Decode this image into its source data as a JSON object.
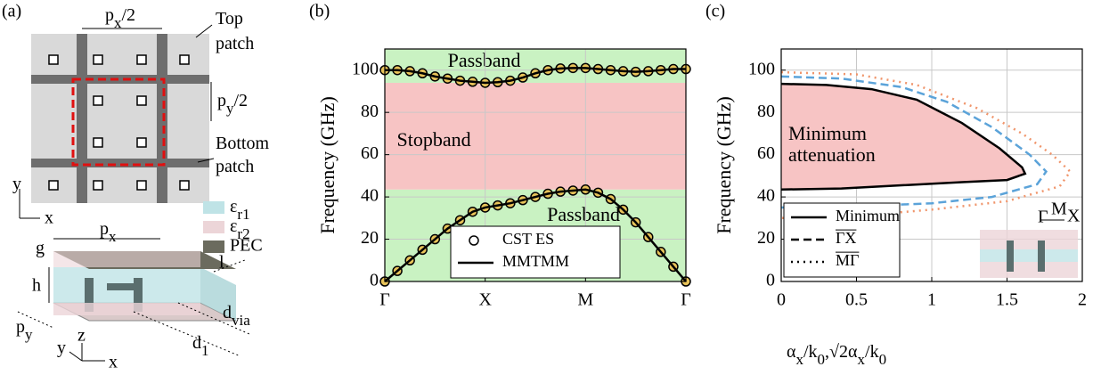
{
  "diagram": {
    "panel_label": "(a)",
    "px_half": [
      "p",
      "x",
      "/2"
    ],
    "top_patch": [
      "Top",
      "patch"
    ],
    "py_half": [
      "p",
      "y",
      "/2"
    ],
    "bottom_patch": [
      "Bottom",
      "patch"
    ],
    "axis_y": "y",
    "axis_x": "x",
    "eps_r1": [
      "ε",
      "r1"
    ],
    "eps_r2": [
      "ε",
      "r2"
    ],
    "pec": "PEC",
    "g": "g",
    "px": [
      "p",
      "x"
    ],
    "l": "l",
    "h": "h",
    "py": [
      "p",
      "y"
    ],
    "d_via": [
      "d",
      "via"
    ],
    "d1": [
      "d",
      "1"
    ],
    "axis3d_y": "y",
    "axis3d_z": "z",
    "axis3d_x": "x"
  },
  "chart_data": [
    {
      "type": "line",
      "panel_label": "(b)",
      "ylabel": "Frequency (GHz)",
      "xlim": [
        0,
        3
      ],
      "ylim": [
        0,
        110
      ],
      "xticks": [
        {
          "value": 0,
          "label": "Γ"
        },
        {
          "value": 1,
          "label": "X"
        },
        {
          "value": 2,
          "label": "M"
        },
        {
          "value": 3,
          "label": "Γ"
        }
      ],
      "yticks": [
        0,
        20,
        40,
        60,
        80,
        100
      ],
      "grid": true,
      "legend": "lower center",
      "regions": [
        {
          "label": "Passband",
          "range": [
            0,
            43.5
          ],
          "color": "#c9f2c2",
          "label_color": "#22a022"
        },
        {
          "label": "Stopband",
          "range": [
            43.5,
            94
          ],
          "color": "#f7c4c4",
          "label_color": "#e01010"
        },
        {
          "label": "Passband",
          "range": [
            94,
            110
          ],
          "color": "#c9f2c2",
          "label_color": "#22a022"
        }
      ],
      "x": [
        0,
        0.125,
        0.25,
        0.375,
        0.5,
        0.625,
        0.75,
        0.875,
        1,
        1.125,
        1.25,
        1.375,
        1.5,
        1.625,
        1.75,
        1.875,
        2,
        2.125,
        2.25,
        2.375,
        2.5,
        2.625,
        2.75,
        2.875,
        3
      ],
      "series": [
        {
          "name": "CST ES",
          "marker": "circle",
          "color": "#000000",
          "fill": "#e8c35a",
          "lower": [
            0,
            5,
            10,
            15,
            20,
            25,
            29,
            33,
            35,
            36,
            37,
            38.5,
            40,
            41.5,
            42.5,
            43,
            43.5,
            42,
            39,
            34,
            28,
            21,
            14,
            7,
            0
          ],
          "upper": [
            100,
            100,
            99.5,
            98.5,
            97,
            96,
            95,
            94.5,
            94,
            94.3,
            95,
            96.5,
            98.5,
            100,
            100.8,
            101,
            101,
            100.5,
            100,
            99.5,
            99.2,
            99.5,
            100,
            100.5,
            100.5
          ]
        },
        {
          "name": "MMTMM",
          "line_style": "solid",
          "color": "#000000",
          "lower": [
            0,
            5,
            10,
            15,
            20,
            25,
            29,
            33,
            35,
            36,
            37,
            38.5,
            40,
            41.5,
            42.5,
            43,
            43.5,
            42,
            39,
            34,
            28,
            21,
            14,
            7,
            0
          ],
          "upper": [
            100,
            100,
            99.5,
            98.5,
            97,
            96,
            95,
            94.5,
            94,
            94.3,
            95,
            96.5,
            98.5,
            100,
            100.8,
            101,
            101,
            100.5,
            100,
            99.5,
            99.2,
            99.5,
            100,
            100.5,
            100.5
          ]
        }
      ]
    },
    {
      "type": "line",
      "panel_label": "(c)",
      "ylabel": "Frequency (GHz)",
      "xlabel": [
        "α",
        "x",
        "/k",
        "0",
        ",√2α",
        "x",
        "/k",
        "0"
      ],
      "annotation": [
        "Minimum",
        "attenuation"
      ],
      "annotation_color": "#e01010",
      "inset_labels": [
        "Γ",
        "M",
        "X"
      ],
      "xlim": [
        0,
        2
      ],
      "ylim": [
        0,
        110
      ],
      "xticks": [
        0,
        0.5,
        1,
        1.5,
        2
      ],
      "yticks": [
        0,
        20,
        40,
        60,
        80,
        100
      ],
      "grid": true,
      "legend": "lower left",
      "series": [
        {
          "name": "Minimum",
          "line_style": "solid",
          "color": "#000000",
          "fill": "#f7c4c4",
          "x": [
            0,
            0.3,
            0.6,
            0.9,
            1.2,
            1.45,
            1.6,
            1.62,
            1.5,
            1.2,
            0.8,
            0.4,
            0
          ],
          "values": [
            93.5,
            93,
            91,
            86,
            75,
            63,
            54,
            51,
            48,
            47,
            45.5,
            44,
            43.5
          ]
        },
        {
          "name": "ΓX",
          "overline": true,
          "line_style": "dashed",
          "color": "#5ba3d9",
          "x": [
            0,
            0.4,
            0.8,
            1.1,
            1.4,
            1.65,
            1.76,
            1.7,
            1.4,
            1,
            0.5,
            0
          ],
          "values": [
            97,
            96,
            92,
            85,
            73,
            60,
            52,
            46,
            40,
            37,
            35.5,
            35
          ]
        },
        {
          "name": "MΓ",
          "overline": true,
          "line_style": "dotted",
          "color": "#f0956b",
          "x": [
            0,
            0.5,
            0.9,
            1.3,
            1.6,
            1.8,
            1.92,
            1.85,
            1.5,
            1,
            0.5,
            0
          ],
          "values": [
            99,
            98,
            93,
            82,
            70,
            60,
            52,
            45,
            38,
            34,
            31,
            30
          ]
        }
      ]
    }
  ]
}
